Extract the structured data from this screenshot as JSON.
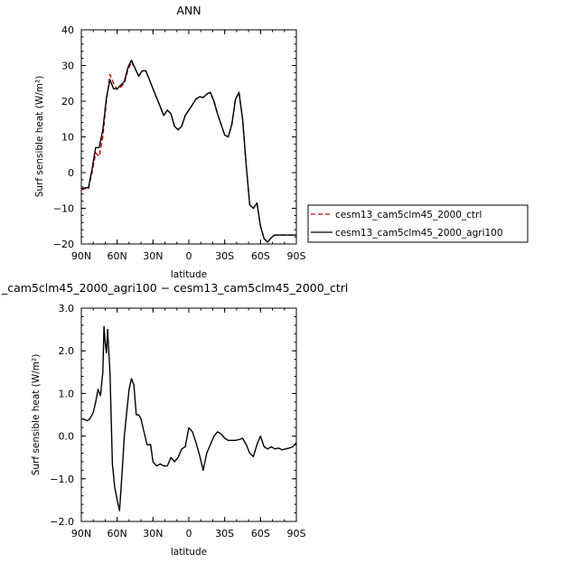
{
  "chart_data": [
    {
      "type": "line",
      "title": "ANN",
      "xlabel": "latitude",
      "ylabel": "Surf sensible heat (W/m²)",
      "xlim": [
        90,
        -90
      ],
      "ylim": [
        -20,
        40
      ],
      "xticks": [
        90,
        60,
        30,
        0,
        -30,
        -60,
        -90
      ],
      "xtick_labels": [
        "90N",
        "60N",
        "30N",
        "0",
        "30S",
        "60S",
        "90S"
      ],
      "yticks": [
        -20,
        -10,
        0,
        10,
        20,
        30,
        40
      ],
      "ytick_labels": [
        "−20",
        "−10",
        "0",
        "10",
        "20",
        "30",
        "40"
      ],
      "legend_position": "right",
      "series": [
        {
          "name": "cesm13_cam5clm45_2000_ctrl",
          "color": "#cc0000",
          "dash": "dashed",
          "x": [
            90,
            87,
            84,
            81,
            78,
            75,
            72,
            69,
            66,
            63,
            60,
            57,
            54,
            51,
            48,
            45,
            42,
            39,
            36,
            33,
            30,
            27,
            24,
            21,
            18,
            15,
            12,
            9,
            6,
            3,
            0,
            -3,
            -6,
            -9,
            -12,
            -15,
            -18,
            -21,
            -24,
            -27,
            -30,
            -33,
            -36,
            -39,
            -42,
            -45,
            -48,
            -51,
            -54,
            -57,
            -60,
            -63,
            -66,
            -69,
            -72,
            -75,
            -78,
            -81,
            -84,
            -87,
            -90
          ],
          "y": [
            -4.8,
            -4.5,
            -4.5,
            0,
            5.5,
            4.5,
            10,
            20,
            27.5,
            25,
            23.3,
            24,
            25,
            28.7,
            31,
            29.2,
            27,
            28.5,
            28.5,
            26,
            23.5,
            21,
            18.5,
            16,
            17.5,
            16.5,
            13,
            12,
            13,
            16,
            17.5,
            19,
            20.6,
            21.3,
            21,
            22,
            22.5,
            20,
            16.5,
            13.5,
            10.5,
            10,
            13.5,
            20.5,
            22.5,
            15,
            2,
            -9,
            -10,
            -8.5,
            -15,
            -18.5,
            -19.5,
            -18.2,
            -17.5,
            -17.5,
            -17.5,
            -17.5,
            -17.5,
            -17.5,
            -17.5
          ]
        },
        {
          "name": "cesm13_cam5clm45_2000_agri100",
          "color": "#000000",
          "dash": "solid",
          "x": [
            90,
            87,
            84,
            81,
            78,
            75,
            72,
            69,
            66,
            63,
            60,
            57,
            54,
            51,
            48,
            45,
            42,
            39,
            36,
            33,
            30,
            27,
            24,
            21,
            18,
            15,
            12,
            9,
            6,
            3,
            0,
            -3,
            -6,
            -9,
            -12,
            -15,
            -18,
            -21,
            -24,
            -27,
            -30,
            -33,
            -36,
            -39,
            -42,
            -45,
            -48,
            -51,
            -54,
            -57,
            -60,
            -63,
            -66,
            -69,
            -72,
            -75,
            -78,
            -81,
            -84,
            -87,
            -90
          ],
          "y": [
            -4.5,
            -4.3,
            -4.2,
            1,
            7,
            7,
            12,
            21,
            26,
            23.5,
            23.5,
            24.5,
            25.5,
            29.5,
            31.5,
            29.2,
            27,
            28.5,
            28.5,
            26,
            23.5,
            21,
            18.5,
            16,
            17.5,
            16.5,
            13,
            12,
            13,
            16,
            17.5,
            19,
            20.6,
            21.3,
            21,
            22,
            22.5,
            20,
            16.5,
            13.5,
            10.5,
            10,
            13.5,
            20.5,
            22.5,
            15,
            2,
            -9,
            -10,
            -8.5,
            -15,
            -18.5,
            -19.5,
            -18.2,
            -17.5,
            -17.5,
            -17.5,
            -17.5,
            -17.5,
            -17.5,
            -17.5
          ]
        }
      ]
    },
    {
      "type": "line",
      "title": "_cam5clm45_2000_agri100 − cesm13_cam5clm45_2000_ctrl",
      "xlabel": "latitude",
      "ylabel": "Surf sensible heat (W/m²)",
      "xlim": [
        90,
        -90
      ],
      "ylim": [
        -2.0,
        3.0
      ],
      "xticks": [
        90,
        60,
        30,
        0,
        -30,
        -60,
        -90
      ],
      "xtick_labels": [
        "90N",
        "60N",
        "30N",
        "0",
        "30S",
        "60S",
        "90S"
      ],
      "yticks": [
        -2.0,
        -1.0,
        0.0,
        1.0,
        2.0,
        3.0
      ],
      "ytick_labels": [
        "−2.0",
        "−1.0",
        "0.0",
        "1.0",
        "2.0",
        "3.0"
      ],
      "series": [
        {
          "color": "#000000",
          "dash": "solid",
          "x": [
            90,
            88,
            85,
            83,
            80,
            78,
            76,
            74,
            72,
            71,
            70,
            69,
            68,
            66,
            64,
            62,
            60,
            58,
            56,
            54,
            52,
            50,
            48,
            46,
            44,
            42,
            40,
            38,
            35,
            32,
            30,
            27,
            24,
            21,
            18,
            15,
            12,
            9,
            6,
            3,
            0,
            -3,
            -6,
            -9,
            -12,
            -15,
            -18,
            -21,
            -24,
            -27,
            -30,
            -33,
            -36,
            -39,
            -42,
            -45,
            -48,
            -51,
            -54,
            -57,
            -60,
            -63,
            -66,
            -69,
            -72,
            -75,
            -78,
            -81,
            -84,
            -87,
            -90
          ],
          "y": [
            0.4,
            0.4,
            0.36,
            0.4,
            0.55,
            0.8,
            1.1,
            0.95,
            1.5,
            2.57,
            2.2,
            1.95,
            2.5,
            1.5,
            -0.65,
            -1.2,
            -1.5,
            -1.75,
            -0.9,
            0.0,
            0.55,
            1.1,
            1.35,
            1.2,
            0.5,
            0.5,
            0.4,
            0.15,
            -0.2,
            -0.2,
            -0.6,
            -0.7,
            -0.65,
            -0.7,
            -0.7,
            -0.5,
            -0.6,
            -0.5,
            -0.3,
            -0.25,
            0.2,
            0.1,
            -0.15,
            -0.45,
            -0.8,
            -0.4,
            -0.2,
            0.0,
            0.1,
            0.05,
            -0.05,
            -0.1,
            -0.1,
            -0.1,
            -0.08,
            -0.05,
            -0.2,
            -0.4,
            -0.48,
            -0.2,
            0.0,
            -0.25,
            -0.3,
            -0.25,
            -0.3,
            -0.28,
            -0.32,
            -0.3,
            -0.28,
            -0.25,
            -0.15
          ]
        }
      ]
    }
  ]
}
